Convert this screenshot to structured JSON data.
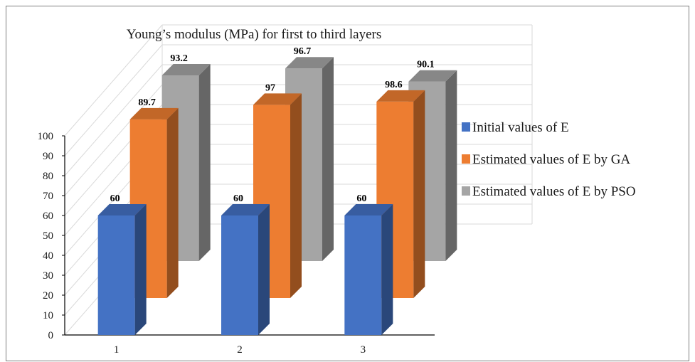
{
  "chart_data": {
    "type": "bar",
    "title": "Young’s modulus (MPa) for first to third layers",
    "categories": [
      "1",
      "2",
      "3"
    ],
    "series": [
      {
        "name": "Initial values of E",
        "values": [
          60,
          60,
          60
        ],
        "color": "#4472c4"
      },
      {
        "name": "Estimated values of E by GA",
        "values": [
          89.7,
          97,
          98.6
        ],
        "color": "#ed7d31"
      },
      {
        "name": "Estimated values of E by PSO",
        "values": [
          93.2,
          96.7,
          90.1
        ],
        "color": "#a5a5a5"
      }
    ],
    "ylim": [
      0,
      100
    ],
    "yticks": [
      0,
      10,
      20,
      30,
      40,
      50,
      60,
      70,
      80,
      90,
      100
    ],
    "xlabel": "",
    "ylabel": "",
    "grid": true,
    "legend_position": "right",
    "three_d": true
  }
}
